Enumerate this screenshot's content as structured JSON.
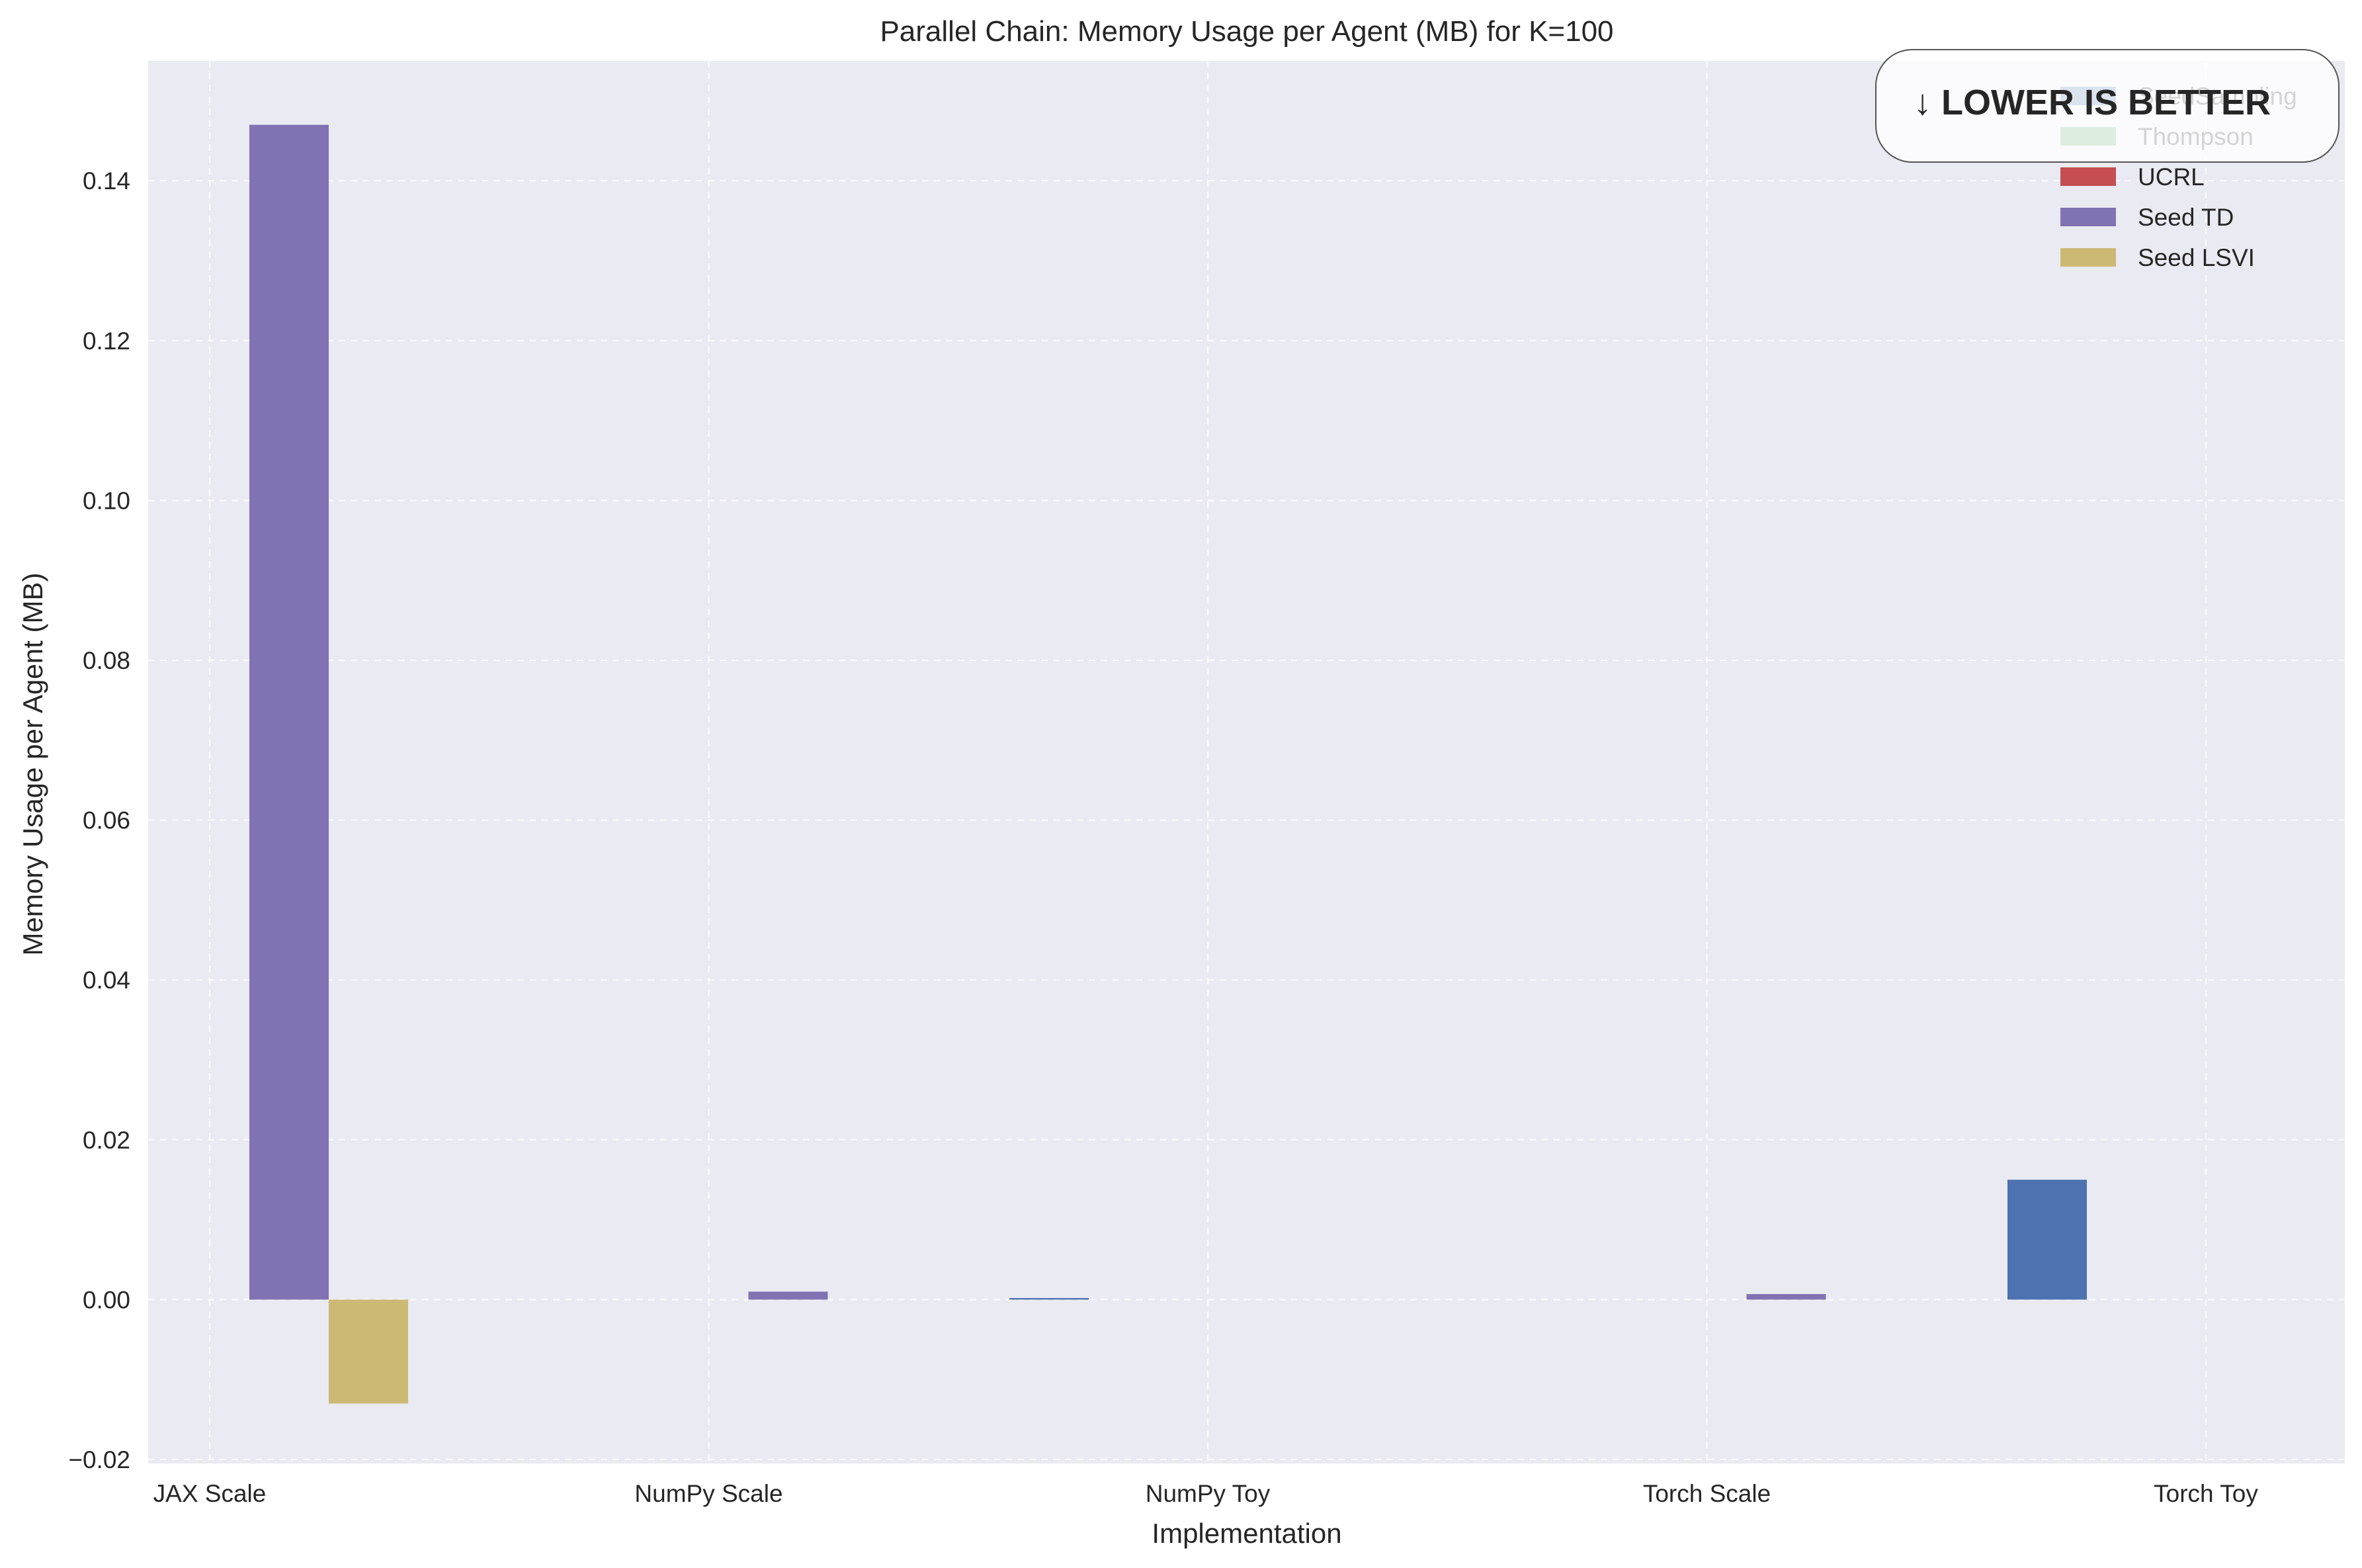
{
  "chart_data": {
    "type": "bar",
    "title": "Parallel Chain: Memory Usage per Agent (MB) for K=100",
    "xlabel": "Implementation",
    "ylabel": "Memory Usage per Agent (MB)",
    "categories": [
      "JAX Scale",
      "NumPy Scale",
      "NumPy Toy",
      "Torch Scale",
      "Torch Toy"
    ],
    "ylim": [
      -0.0205,
      0.155
    ],
    "yticks": [
      -0.02,
      0.0,
      0.02,
      0.04,
      0.06,
      0.08,
      0.1,
      0.12,
      0.14
    ],
    "ytick_labels": [
      "−0.02",
      "0.00",
      "0.02",
      "0.04",
      "0.06",
      "0.08",
      "0.10",
      "0.12",
      "0.14"
    ],
    "grid": true,
    "legend_position": "top-right",
    "series": [
      {
        "name": "SeedSampling",
        "color": "#4c72b0",
        "values": [
          0,
          0,
          0.0002,
          0,
          0.015
        ]
      },
      {
        "name": "Thompson",
        "color": "#55a868",
        "values": [
          0,
          0,
          0,
          0,
          0
        ]
      },
      {
        "name": "UCRL",
        "color": "#c44e52",
        "values": [
          0,
          0,
          0,
          0,
          0
        ]
      },
      {
        "name": "Seed TD",
        "color": "#8172b3",
        "values": [
          0.147,
          0.001,
          0,
          0.0007,
          0
        ]
      },
      {
        "name": "Seed LSVI",
        "color": "#ccb974",
        "values": [
          -0.013,
          0,
          0,
          0,
          0
        ]
      }
    ],
    "annotation": "↓ LOWER IS BETTER"
  }
}
